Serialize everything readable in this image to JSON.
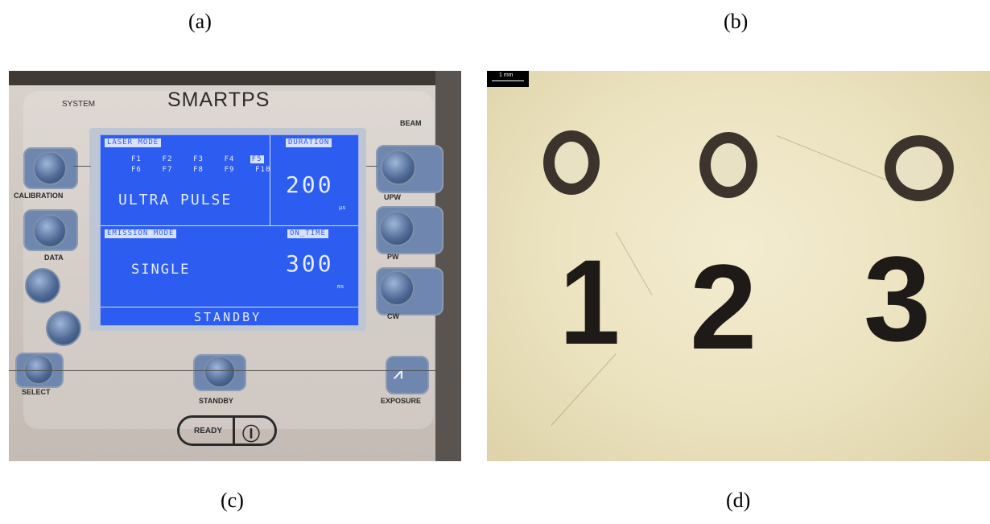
{
  "captions": {
    "top_left": "(a)",
    "top_right": "(b)",
    "bottom_left": "(c)",
    "bottom_right": "(d)"
  },
  "panel": {
    "brand": "SMARTPS",
    "subtitle": "SYSTEM",
    "top_right_label": "BEAM",
    "left_labels": [
      "CALIBRATION",
      "DATA"
    ],
    "right_labels": [
      "UPW",
      "PW",
      "CW"
    ],
    "select_label": "SELECT",
    "standby_label": "STANDBY",
    "exposure_label": "EXPOSURE",
    "ready_label": "READY",
    "power_symbol": "Ⓘ"
  },
  "screen": {
    "laser_mode_tag": "LASER MODE",
    "duration_tag": "DURATION",
    "f_row_1": [
      "F1",
      "F2",
      "F3",
      "F4",
      "F5"
    ],
    "f_row_2": [
      "F6",
      "F7",
      "F8",
      "F9",
      "F10"
    ],
    "selected_f": "F5",
    "mode_value": "ULTRA PULSE",
    "duration_value": "200",
    "duration_unit": "µs",
    "emission_tag": "EMISSION MODE",
    "on_time_tag": "ON_TIME",
    "emission_value": "SINGLE",
    "on_time_value": "300",
    "on_time_unit": "ms",
    "status": "STANDBY"
  },
  "sample": {
    "scale_label": "1 mm",
    "digits": [
      "1",
      "2",
      "3"
    ]
  },
  "colors": {
    "screen_blue": "#2c5df0",
    "paper": "#ebe2bf",
    "ink": "#1e1a17"
  }
}
